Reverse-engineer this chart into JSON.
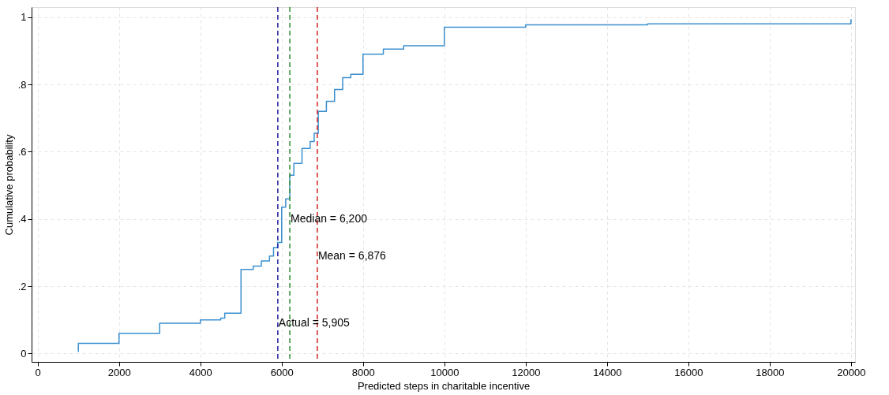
{
  "chart_data": {
    "type": "step",
    "xlabel": "Predicted steps in charitable incentive",
    "ylabel": "Cumulative probability",
    "x": [
      1000,
      1000,
      2000,
      2000,
      3000,
      3000,
      4000,
      4500,
      4600,
      5000,
      5000,
      5300,
      5500,
      5700,
      5800,
      5900,
      6000,
      6100,
      6200,
      6200,
      6300,
      6500,
      6700,
      6800,
      6900,
      7100,
      7300,
      7500,
      7700,
      8000,
      8500,
      9000,
      10000,
      12000,
      15000,
      20000,
      20000
    ],
    "series": [
      {
        "color": "#3a8fd0",
        "values": [
          0.005,
          0.03,
          0.04,
          0.06,
          0.065,
          0.09,
          0.1,
          0.105,
          0.12,
          0.13,
          0.25,
          0.26,
          0.275,
          0.29,
          0.315,
          0.33,
          0.435,
          0.46,
          0.47,
          0.53,
          0.565,
          0.61,
          0.63,
          0.655,
          0.72,
          0.75,
          0.785,
          0.82,
          0.83,
          0.89,
          0.905,
          0.915,
          0.97,
          0.977,
          0.98,
          0.983,
          0.994
        ]
      }
    ],
    "xlim": [
      -150,
      20100
    ],
    "xticks": [
      0,
      2000,
      4000,
      6000,
      8000,
      10000,
      12000,
      14000,
      16000,
      18000,
      20000
    ],
    "ylim": [
      -0.025,
      1.03
    ],
    "yticks": [
      0,
      {
        "value": 0.2,
        "label": ".2"
      },
      {
        "value": 0.4,
        "label": ".4"
      },
      {
        "value": 0.6,
        "label": ".6"
      },
      {
        "value": 0.8,
        "label": ".8"
      },
      1
    ],
    "grid": true,
    "line_style": "solid",
    "ref_lines": [
      {
        "axis": "x",
        "value": 5905,
        "color": "#1f1fa0",
        "line_style": "dashed"
      },
      {
        "axis": "x",
        "value": 6200,
        "color": "#2e8b2e",
        "line_style": "dashed"
      },
      {
        "axis": "x",
        "value": 6876,
        "color": "#d42020",
        "line_style": "dashed"
      }
    ],
    "annotations": [
      {
        "text": "Median = 6,200",
        "x": 6200,
        "y": 0.4
      },
      {
        "text": "Mean = 6,876",
        "x": 6876,
        "y": 0.29
      },
      {
        "text": "Actual = 5,905",
        "x": 5905,
        "y": 0.09
      }
    ]
  }
}
